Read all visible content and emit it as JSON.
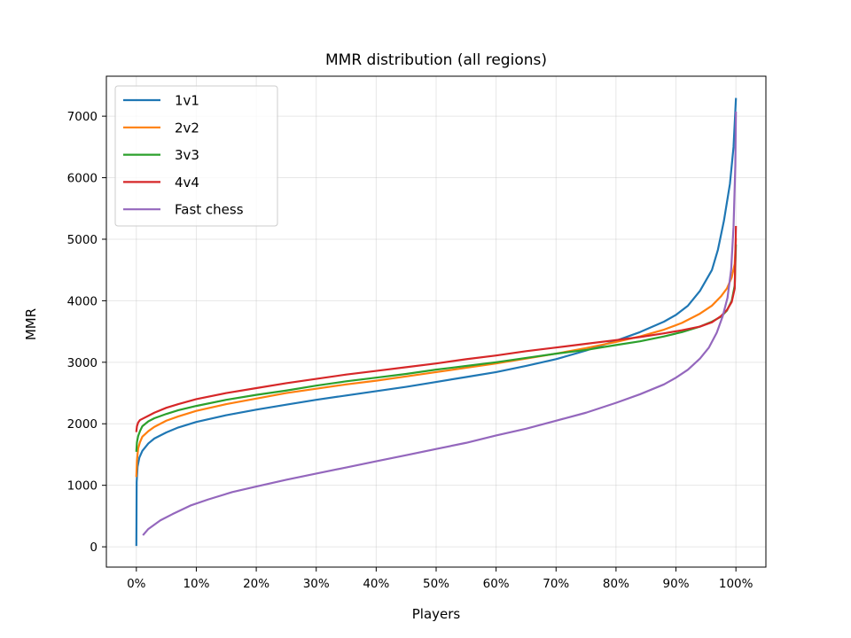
{
  "chart_data": {
    "type": "line",
    "title": "MMR distribution (all regions)",
    "xlabel": "Players",
    "ylabel": "MMR",
    "xlim": [
      -5,
      105
    ],
    "ylim": [
      -330,
      7650
    ],
    "x_ticks": [
      0,
      10,
      20,
      30,
      40,
      50,
      60,
      70,
      80,
      90,
      100
    ],
    "x_tick_labels": [
      "0%",
      "10%",
      "20%",
      "30%",
      "40%",
      "50%",
      "60%",
      "70%",
      "80%",
      "90%",
      "100%"
    ],
    "y_ticks": [
      0,
      1000,
      2000,
      3000,
      4000,
      5000,
      6000,
      7000
    ],
    "y_tick_labels": [
      "0",
      "1000",
      "2000",
      "3000",
      "4000",
      "5000",
      "6000",
      "7000"
    ],
    "grid": true,
    "legend_position": "top-left",
    "series": [
      {
        "name": "1v1",
        "color": "#1f77b4",
        "points": [
          [
            0,
            30
          ],
          [
            0.05,
            1050
          ],
          [
            0.2,
            1300
          ],
          [
            0.5,
            1450
          ],
          [
            1,
            1560
          ],
          [
            2,
            1680
          ],
          [
            3,
            1760
          ],
          [
            5,
            1860
          ],
          [
            7,
            1940
          ],
          [
            10,
            2030
          ],
          [
            15,
            2140
          ],
          [
            20,
            2230
          ],
          [
            25,
            2310
          ],
          [
            30,
            2390
          ],
          [
            35,
            2460
          ],
          [
            40,
            2530
          ],
          [
            45,
            2600
          ],
          [
            50,
            2680
          ],
          [
            55,
            2760
          ],
          [
            60,
            2840
          ],
          [
            65,
            2940
          ],
          [
            70,
            3050
          ],
          [
            75,
            3190
          ],
          [
            80,
            3350
          ],
          [
            84,
            3490
          ],
          [
            88,
            3660
          ],
          [
            90,
            3770
          ],
          [
            92,
            3920
          ],
          [
            94,
            4160
          ],
          [
            96,
            4500
          ],
          [
            97,
            4830
          ],
          [
            98,
            5300
          ],
          [
            99,
            5900
          ],
          [
            99.6,
            6500
          ],
          [
            100,
            7280
          ]
        ]
      },
      {
        "name": "2v2",
        "color": "#ff7f0e",
        "points": [
          [
            0,
            1150
          ],
          [
            0.1,
            1400
          ],
          [
            0.3,
            1600
          ],
          [
            0.6,
            1700
          ],
          [
            1,
            1790
          ],
          [
            2,
            1880
          ],
          [
            3,
            1950
          ],
          [
            5,
            2050
          ],
          [
            7,
            2120
          ],
          [
            10,
            2210
          ],
          [
            15,
            2320
          ],
          [
            20,
            2410
          ],
          [
            25,
            2500
          ],
          [
            30,
            2570
          ],
          [
            35,
            2640
          ],
          [
            40,
            2700
          ],
          [
            45,
            2770
          ],
          [
            50,
            2840
          ],
          [
            55,
            2910
          ],
          [
            60,
            2980
          ],
          [
            65,
            3060
          ],
          [
            70,
            3140
          ],
          [
            75,
            3230
          ],
          [
            80,
            3330
          ],
          [
            84,
            3420
          ],
          [
            88,
            3530
          ],
          [
            91,
            3640
          ],
          [
            94,
            3790
          ],
          [
            96,
            3920
          ],
          [
            97.5,
            4070
          ],
          [
            98.5,
            4200
          ],
          [
            99.3,
            4380
          ],
          [
            99.8,
            4600
          ],
          [
            100,
            5000
          ]
        ]
      },
      {
        "name": "3v3",
        "color": "#2ca02c",
        "points": [
          [
            0,
            1560
          ],
          [
            0.1,
            1700
          ],
          [
            0.3,
            1800
          ],
          [
            0.6,
            1880
          ],
          [
            1,
            1960
          ],
          [
            2,
            2040
          ],
          [
            3,
            2090
          ],
          [
            5,
            2160
          ],
          [
            7,
            2220
          ],
          [
            10,
            2290
          ],
          [
            15,
            2390
          ],
          [
            20,
            2470
          ],
          [
            25,
            2540
          ],
          [
            30,
            2620
          ],
          [
            35,
            2690
          ],
          [
            40,
            2750
          ],
          [
            45,
            2810
          ],
          [
            50,
            2880
          ],
          [
            55,
            2940
          ],
          [
            60,
            3000
          ],
          [
            65,
            3070
          ],
          [
            70,
            3140
          ],
          [
            75,
            3200
          ],
          [
            80,
            3280
          ],
          [
            84,
            3340
          ],
          [
            88,
            3420
          ],
          [
            91,
            3490
          ],
          [
            94,
            3580
          ],
          [
            96,
            3660
          ],
          [
            97.5,
            3740
          ],
          [
            98.5,
            3840
          ],
          [
            99.3,
            4000
          ],
          [
            99.8,
            4250
          ],
          [
            100,
            4900
          ]
        ]
      },
      {
        "name": "4v4",
        "color": "#d62728",
        "points": [
          [
            0,
            1880
          ],
          [
            0.1,
            1960
          ],
          [
            0.3,
            2020
          ],
          [
            0.6,
            2060
          ],
          [
            1,
            2080
          ],
          [
            2,
            2130
          ],
          [
            3,
            2180
          ],
          [
            5,
            2260
          ],
          [
            7,
            2320
          ],
          [
            10,
            2400
          ],
          [
            15,
            2500
          ],
          [
            20,
            2580
          ],
          [
            25,
            2660
          ],
          [
            30,
            2730
          ],
          [
            35,
            2800
          ],
          [
            40,
            2860
          ],
          [
            45,
            2920
          ],
          [
            50,
            2980
          ],
          [
            55,
            3050
          ],
          [
            60,
            3110
          ],
          [
            65,
            3180
          ],
          [
            70,
            3240
          ],
          [
            75,
            3300
          ],
          [
            80,
            3360
          ],
          [
            84,
            3410
          ],
          [
            88,
            3470
          ],
          [
            91,
            3520
          ],
          [
            94,
            3580
          ],
          [
            96,
            3650
          ],
          [
            97.5,
            3750
          ],
          [
            98.5,
            3850
          ],
          [
            99.3,
            3980
          ],
          [
            99.8,
            4200
          ],
          [
            100,
            5200
          ]
        ]
      },
      {
        "name": "Fast chess",
        "color": "#9467bd",
        "points": [
          [
            1.2,
            200
          ],
          [
            2,
            290
          ],
          [
            4,
            430
          ],
          [
            6,
            530
          ],
          [
            9,
            670
          ],
          [
            12,
            770
          ],
          [
            16,
            890
          ],
          [
            20,
            980
          ],
          [
            25,
            1090
          ],
          [
            30,
            1190
          ],
          [
            35,
            1290
          ],
          [
            40,
            1390
          ],
          [
            45,
            1490
          ],
          [
            50,
            1590
          ],
          [
            55,
            1690
          ],
          [
            60,
            1810
          ],
          [
            65,
            1920
          ],
          [
            70,
            2050
          ],
          [
            75,
            2180
          ],
          [
            80,
            2340
          ],
          [
            84,
            2480
          ],
          [
            88,
            2640
          ],
          [
            90,
            2750
          ],
          [
            92,
            2880
          ],
          [
            94,
            3060
          ],
          [
            95.5,
            3240
          ],
          [
            96.8,
            3480
          ],
          [
            97.8,
            3750
          ],
          [
            98.6,
            4050
          ],
          [
            99.2,
            4500
          ],
          [
            99.6,
            5200
          ],
          [
            99.9,
            6200
          ],
          [
            100,
            7060
          ]
        ]
      }
    ]
  }
}
